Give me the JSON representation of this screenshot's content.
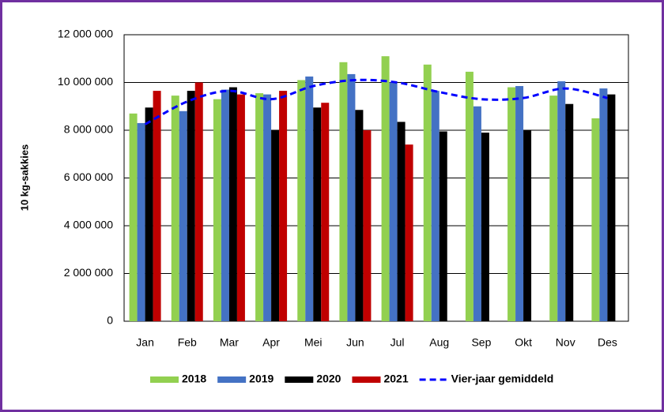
{
  "chart_data": {
    "type": "bar",
    "y_label": "10 kg-sakkies",
    "categories": [
      "Jan",
      "Feb",
      "Mar",
      "Apr",
      "Mei",
      "Jun",
      "Jul",
      "Aug",
      "Sep",
      "Okt",
      "Nov",
      "Des"
    ],
    "series": [
      {
        "name": "2018",
        "color": "#92d050",
        "values": [
          8700000,
          9450000,
          9300000,
          9550000,
          10100000,
          10850000,
          11100000,
          10750000,
          10450000,
          9800000,
          9450000,
          8500000
        ]
      },
      {
        "name": "2019",
        "color": "#4472c4",
        "values": [
          8300000,
          8800000,
          9700000,
          9500000,
          10250000,
          10350000,
          10000000,
          9650000,
          9000000,
          9850000,
          10050000,
          9750000
        ]
      },
      {
        "name": "2020",
        "color": "#000000",
        "values": [
          8950000,
          9650000,
          9800000,
          8000000,
          8950000,
          8850000,
          8350000,
          7950000,
          7900000,
          8000000,
          9100000,
          9500000
        ]
      },
      {
        "name": "2021",
        "color": "#c00000",
        "values": [
          9650000,
          10000000,
          9500000,
          9650000,
          9150000,
          8000000,
          7400000,
          null,
          null,
          null,
          null,
          null
        ]
      },
      {
        "name": "Vier-jaar gemiddeld",
        "type": "line",
        "color": "#0000ff",
        "dashed": true,
        "values": [
          8250000,
          9200000,
          9650000,
          9300000,
          9850000,
          10100000,
          10000000,
          9600000,
          9300000,
          9350000,
          9750000,
          9350000
        ]
      }
    ],
    "ylim": [
      0,
      12000000
    ],
    "yticks": [
      {
        "value": 0,
        "label": "0"
      },
      {
        "value": 2000000,
        "label": "2 000 000"
      },
      {
        "value": 4000000,
        "label": "4 000 000"
      },
      {
        "value": 6000000,
        "label": "6 000 000"
      },
      {
        "value": 8000000,
        "label": "8 000 000"
      },
      {
        "value": 10000000,
        "label": "10 000 000"
      },
      {
        "value": 12000000,
        "label": "12 000 000"
      }
    ],
    "grid": true,
    "legend": "bottom"
  }
}
